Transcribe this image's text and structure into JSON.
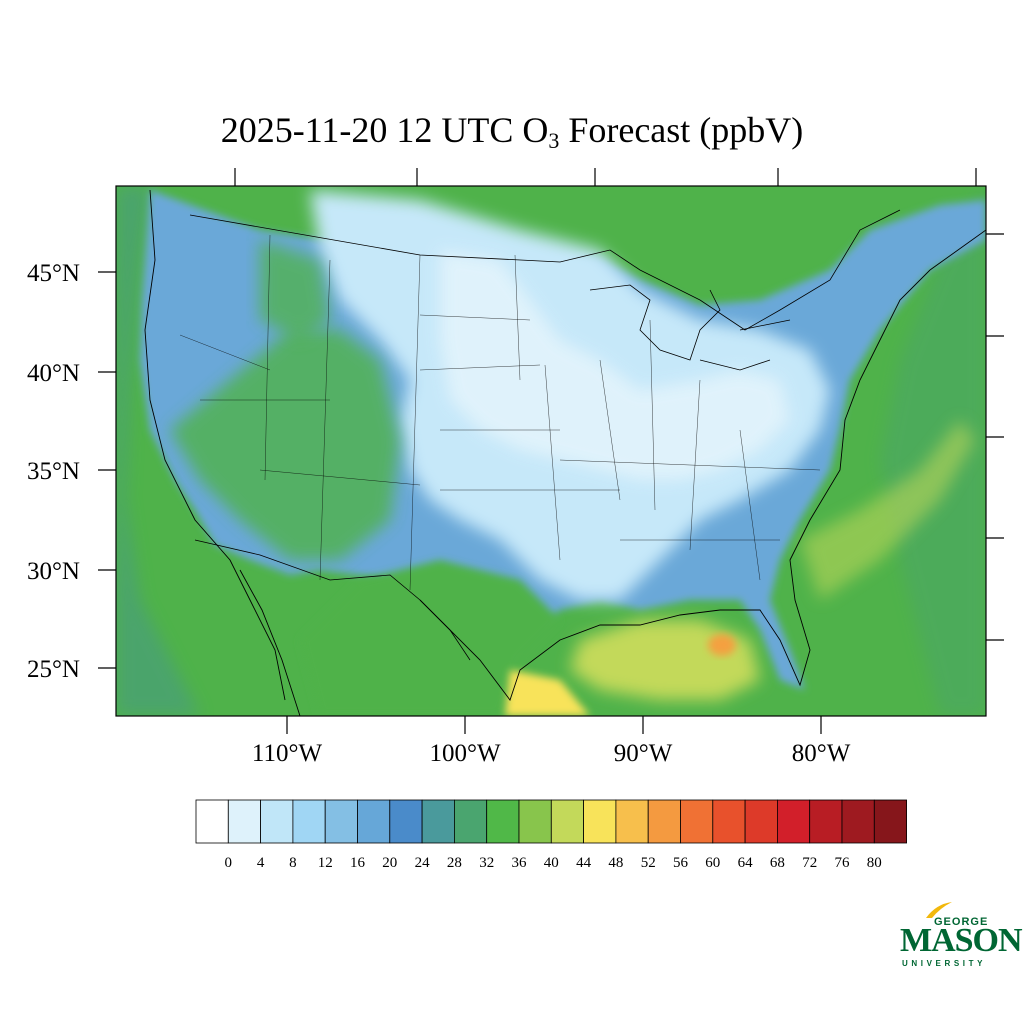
{
  "title": {
    "prefix": "2025-11-20 12 UTC O",
    "subscript": "3",
    "suffix": " Forecast (ppbV)"
  },
  "axes": {
    "lat_labels": [
      "45°N",
      "40°N",
      "35°N",
      "30°N",
      "25°N"
    ],
    "lon_labels": [
      "110°W",
      "100°W",
      "90°W",
      "80°W"
    ]
  },
  "colorbar": {
    "labels": [
      "0",
      "4",
      "8",
      "12",
      "16",
      "20",
      "24",
      "28",
      "32",
      "36",
      "40",
      "44",
      "48",
      "52",
      "56",
      "60",
      "64",
      "68",
      "72",
      "76",
      "80"
    ],
    "colors": [
      "#ffffff",
      "#def2fb",
      "#c0e6f8",
      "#a0d6f4",
      "#84bfe4",
      "#66a7d8",
      "#4a8bca",
      "#4a9a9c",
      "#4aa56f",
      "#50b848",
      "#88c54c",
      "#c3d95a",
      "#f8e35a",
      "#f7bf4c",
      "#f49a40",
      "#f07134",
      "#e8512c",
      "#dd3a29",
      "#d21f2a",
      "#b81d24",
      "#9e1a20",
      "#86161b"
    ]
  },
  "map": {
    "colors": {
      "ocean": "#4fb24a",
      "ocean_deep": "#4a9f7a",
      "land_blue": "#6aa8d8",
      "land_light": "#c6e8f9",
      "land_white": "#e4f4fc",
      "gulf_yellow": "#c3d95a",
      "hotspot_orange": "#f4a040"
    }
  },
  "logo": {
    "line1": "GEORGE",
    "line2": "MASON",
    "line3": "UNIVERSITY",
    "color": "#006633",
    "accent": "#f2b80c"
  }
}
